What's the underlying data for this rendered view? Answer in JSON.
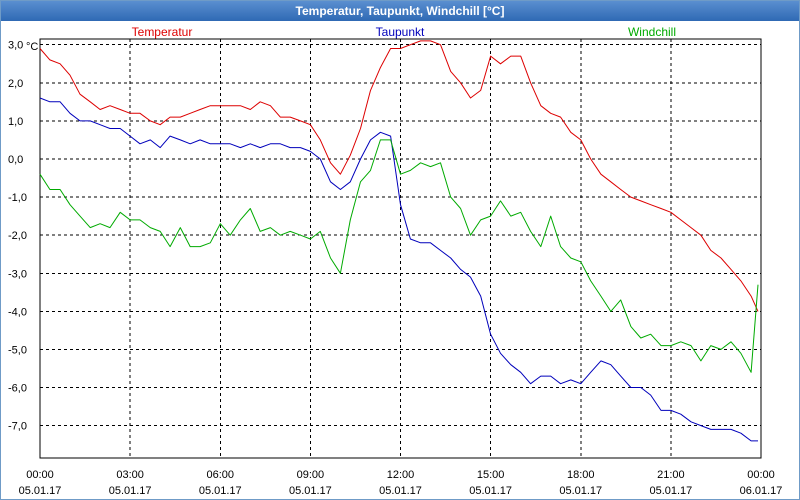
{
  "window": {
    "title": "Temperatur, Taupunkt, Windchill [°C]"
  },
  "colors": {
    "temperatur": "#dd0000",
    "taupunkt": "#0000bb",
    "windchill": "#00aa00",
    "grid": "#000000"
  },
  "chart_data": {
    "type": "line",
    "title": "Temperatur, Taupunkt, Windchill [°C]",
    "ylabel": "°C",
    "xlabel": "",
    "xlim": [
      0,
      24
    ],
    "ylim": [
      -7.5,
      3.5
    ],
    "grid": true,
    "legend_placement": "top",
    "y_ticks": [
      3.0,
      2.0,
      1.0,
      0.0,
      -1.0,
      -2.0,
      -3.0,
      -4.0,
      -5.0,
      -6.0,
      -7.0
    ],
    "y_tick_labels": [
      "3,0",
      "2,0",
      "1,0",
      "0,0",
      "-1,0",
      "-2,0",
      "-3,0",
      "-4,0",
      "-5,0",
      "-6,0",
      "-7,0"
    ],
    "x_ticks": [
      0,
      3,
      6,
      9,
      12,
      15,
      18,
      21,
      24
    ],
    "x_tick_times": [
      "00:00",
      "03:00",
      "06:00",
      "09:00",
      "12:00",
      "15:00",
      "18:00",
      "21:00",
      "00:00"
    ],
    "x_tick_dates": [
      "05.01.17",
      "05.01.17",
      "05.01.17",
      "05.01.17",
      "05.01.17",
      "05.01.17",
      "05.01.17",
      "05.01.17",
      "06.01.17"
    ],
    "series": [
      {
        "name": "Temperatur",
        "color": "#dd0000",
        "x": [
          0,
          0.33,
          0.67,
          1.0,
          1.33,
          1.67,
          2.0,
          2.33,
          2.67,
          3.0,
          3.33,
          3.67,
          4.0,
          4.33,
          4.67,
          5.0,
          5.33,
          5.67,
          6.0,
          6.33,
          6.67,
          7.0,
          7.33,
          7.67,
          8.0,
          8.33,
          8.67,
          9.0,
          9.33,
          9.67,
          10.0,
          10.33,
          10.67,
          11.0,
          11.33,
          11.67,
          12.0,
          12.33,
          12.67,
          13.0,
          13.33,
          13.67,
          14.0,
          14.33,
          14.67,
          15.0,
          15.33,
          15.67,
          16.0,
          16.33,
          16.67,
          17.0,
          17.33,
          17.67,
          18.0,
          18.33,
          18.67,
          19.0,
          19.33,
          19.67,
          20.0,
          20.33,
          20.67,
          21.0,
          21.33,
          21.67,
          22.0,
          22.33,
          22.67,
          23.0,
          23.33,
          23.67,
          23.9
        ],
        "values": [
          2.9,
          2.6,
          2.5,
          2.2,
          1.7,
          1.5,
          1.3,
          1.4,
          1.3,
          1.2,
          1.2,
          1.0,
          0.9,
          1.1,
          1.1,
          1.2,
          1.3,
          1.4,
          1.4,
          1.4,
          1.4,
          1.3,
          1.5,
          1.4,
          1.1,
          1.1,
          1.0,
          0.9,
          0.5,
          -0.1,
          -0.4,
          0.1,
          0.8,
          1.8,
          2.4,
          2.9,
          2.9,
          3.0,
          3.1,
          3.1,
          3.0,
          2.3,
          2.0,
          1.6,
          1.8,
          2.7,
          2.5,
          2.7,
          2.7,
          2.0,
          1.4,
          1.2,
          1.1,
          0.7,
          0.5,
          0.0,
          -0.4,
          -0.6,
          -0.8,
          -1.0,
          -1.1,
          -1.2,
          -1.3,
          -1.4,
          -1.6,
          -1.8,
          -2.0,
          -2.4,
          -2.6,
          -2.9,
          -3.2,
          -3.6,
          -4.0
        ]
      },
      {
        "name": "Taupunkt",
        "color": "#0000bb",
        "x": [
          0,
          0.33,
          0.67,
          1.0,
          1.33,
          1.67,
          2.0,
          2.33,
          2.67,
          3.0,
          3.33,
          3.67,
          4.0,
          4.33,
          4.67,
          5.0,
          5.33,
          5.67,
          6.0,
          6.33,
          6.67,
          7.0,
          7.33,
          7.67,
          8.0,
          8.33,
          8.67,
          9.0,
          9.33,
          9.67,
          10.0,
          10.33,
          10.67,
          11.0,
          11.33,
          11.67,
          12.0,
          12.33,
          12.67,
          13.0,
          13.33,
          13.67,
          14.0,
          14.33,
          14.67,
          15.0,
          15.33,
          15.67,
          16.0,
          16.33,
          16.67,
          17.0,
          17.33,
          17.67,
          18.0,
          18.33,
          18.67,
          19.0,
          19.33,
          19.67,
          20.0,
          20.33,
          20.67,
          21.0,
          21.33,
          21.67,
          22.0,
          22.33,
          22.67,
          23.0,
          23.33,
          23.67,
          23.9
        ],
        "values": [
          1.6,
          1.5,
          1.5,
          1.2,
          1.0,
          1.0,
          0.9,
          0.8,
          0.8,
          0.6,
          0.4,
          0.5,
          0.3,
          0.6,
          0.5,
          0.4,
          0.5,
          0.4,
          0.4,
          0.4,
          0.3,
          0.4,
          0.3,
          0.4,
          0.4,
          0.3,
          0.3,
          0.2,
          0.0,
          -0.6,
          -0.8,
          -0.6,
          0.0,
          0.5,
          0.7,
          0.6,
          -1.2,
          -2.1,
          -2.2,
          -2.2,
          -2.4,
          -2.6,
          -2.9,
          -3.1,
          -3.6,
          -4.6,
          -5.1,
          -5.4,
          -5.6,
          -5.9,
          -5.7,
          -5.7,
          -5.9,
          -5.8,
          -5.9,
          -5.6,
          -5.3,
          -5.4,
          -5.7,
          -6.0,
          -6.0,
          -6.2,
          -6.6,
          -6.6,
          -6.7,
          -6.9,
          -7.0,
          -7.1,
          -7.1,
          -7.1,
          -7.2,
          -7.4,
          -7.4
        ]
      },
      {
        "name": "Windchill",
        "color": "#00aa00",
        "x": [
          0,
          0.33,
          0.67,
          1.0,
          1.33,
          1.67,
          2.0,
          2.33,
          2.67,
          3.0,
          3.33,
          3.67,
          4.0,
          4.33,
          4.67,
          5.0,
          5.33,
          5.67,
          6.0,
          6.33,
          6.67,
          7.0,
          7.33,
          7.67,
          8.0,
          8.33,
          8.67,
          9.0,
          9.33,
          9.67,
          10.0,
          10.33,
          10.67,
          11.0,
          11.33,
          11.67,
          12.0,
          12.33,
          12.67,
          13.0,
          13.33,
          13.67,
          14.0,
          14.33,
          14.67,
          15.0,
          15.33,
          15.67,
          16.0,
          16.33,
          16.67,
          17.0,
          17.33,
          17.67,
          18.0,
          18.33,
          18.67,
          19.0,
          19.33,
          19.67,
          20.0,
          20.33,
          20.67,
          21.0,
          21.33,
          21.67,
          22.0,
          22.33,
          22.67,
          23.0,
          23.33,
          23.67,
          23.9
        ],
        "values": [
          -0.4,
          -0.8,
          -0.8,
          -1.2,
          -1.5,
          -1.8,
          -1.7,
          -1.8,
          -1.4,
          -1.6,
          -1.6,
          -1.8,
          -1.9,
          -2.3,
          -1.8,
          -2.3,
          -2.3,
          -2.2,
          -1.7,
          -2.0,
          -1.6,
          -1.3,
          -1.9,
          -1.8,
          -2.0,
          -1.9,
          -2.0,
          -2.1,
          -1.9,
          -2.6,
          -3.0,
          -1.6,
          -0.6,
          -0.3,
          0.5,
          0.5,
          -0.4,
          -0.3,
          -0.1,
          -0.2,
          -0.1,
          -1.0,
          -1.3,
          -2.0,
          -1.6,
          -1.5,
          -1.1,
          -1.5,
          -1.4,
          -1.9,
          -2.3,
          -1.5,
          -2.3,
          -2.6,
          -2.7,
          -3.2,
          -3.6,
          -4.0,
          -3.7,
          -4.4,
          -4.7,
          -4.6,
          -4.9,
          -4.9,
          -4.8,
          -4.9,
          -5.3,
          -4.9,
          -5.0,
          -4.8,
          -5.1,
          -5.6,
          -3.3
        ]
      }
    ]
  }
}
